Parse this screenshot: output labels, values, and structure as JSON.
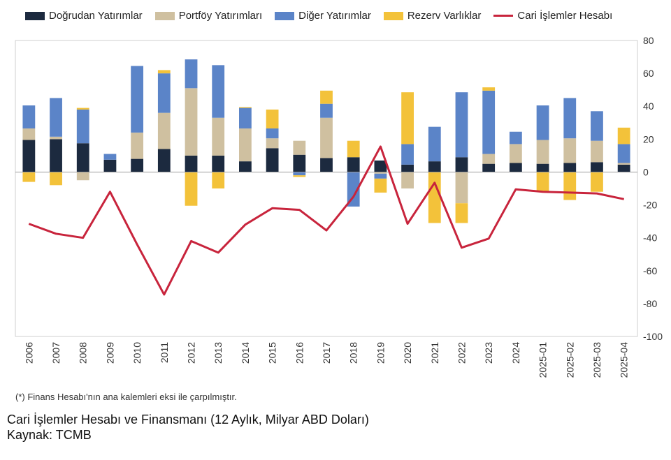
{
  "chart_data": {
    "type": "bar",
    "categories": [
      "2006",
      "2007",
      "2008",
      "2009",
      "2010",
      "2011",
      "2012",
      "2013",
      "2014",
      "2015",
      "2016",
      "2017",
      "2018",
      "2019",
      "2020",
      "2021",
      "2022",
      "2023",
      "2024",
      "2025-01",
      "2025-02",
      "2025-03",
      "2025-04"
    ],
    "series": [
      {
        "name": "Doğrudan Yatırımlar",
        "color": "#1c2a3f",
        "values": [
          19.5,
          20,
          17.5,
          7.5,
          8,
          14,
          10,
          10,
          6.5,
          14.5,
          10.5,
          8.5,
          9,
          7,
          4.5,
          6.5,
          9,
          5,
          5.5,
          5,
          5.5,
          6,
          4.5
        ]
      },
      {
        "name": "Portföy Yatırımları",
        "color": "#cfc0a0",
        "values": [
          7,
          1.5,
          -5,
          0,
          16,
          22,
          41,
          23,
          20,
          6,
          8.5,
          24.5,
          0,
          -1,
          -10,
          0,
          -19,
          6,
          11.5,
          14.5,
          15,
          13,
          1
        ]
      },
      {
        "name": "Diğer Yatırımlar",
        "color": "#5b84c8",
        "values": [
          14,
          23.5,
          20.5,
          3.5,
          40.5,
          24,
          17.5,
          32,
          12.5,
          6,
          -2,
          8.5,
          -21,
          -3,
          12.5,
          21,
          39.5,
          38.5,
          7.5,
          21,
          24.5,
          18,
          11.5
        ]
      },
      {
        "name": "Rezerv Varlıklar",
        "color": "#f3c23a",
        "values": [
          -6,
          -8,
          1,
          0,
          0,
          2,
          -20.5,
          -10,
          0.5,
          11.5,
          -1,
          8,
          10,
          -8.5,
          31.5,
          -31,
          -12,
          2,
          0,
          -12,
          -17,
          -12,
          10
        ]
      },
      {
        "name": "Cari İşlemler Hesabı",
        "color": "#c8243c",
        "type": "line",
        "values": [
          -31.5,
          -37.5,
          -40,
          -12,
          -44,
          -74.5,
          -42,
          -49,
          -32,
          -22,
          -23,
          -35.5,
          -15,
          15.5,
          -31.5,
          -6.5,
          -46,
          -40.5,
          -10.5,
          -12,
          -12.5,
          -13,
          -16.5
        ]
      }
    ],
    "ylim": [
      -100,
      80
    ],
    "yticks": [
      80,
      60,
      40,
      20,
      0,
      -20,
      -40,
      -60,
      -80,
      -100
    ],
    "ytick_labels": [
      "80",
      "60",
      "40",
      "20",
      "0",
      "-20",
      "-40",
      "-60",
      "-80",
      "-100"
    ],
    "legend_position": "top",
    "grid": false
  },
  "note": "(*) Finans Hesabı'nın ana kalemleri eksi ile çarpılmıştır.",
  "caption_title": "Cari İşlemler Hesabı ve Finansmanı (12 Aylık, Milyar ABD Doları)",
  "caption_source": "Kaynak: TCMB"
}
